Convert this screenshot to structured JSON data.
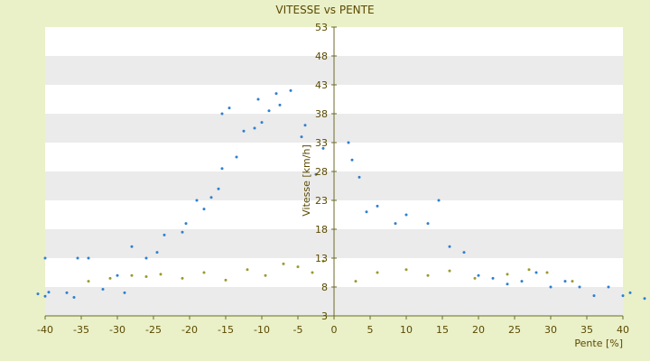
{
  "chart_data": {
    "type": "scatter",
    "title": "VITESSE vs PENTE",
    "xlabel": "Pente [%]",
    "ylabel": "Vitesse [km/h]",
    "xlim": [
      -40,
      40
    ],
    "ylim": [
      3,
      53
    ],
    "x_ticks": [
      -40,
      -35,
      -30,
      -25,
      -20,
      -15,
      -10,
      -5,
      0,
      5,
      10,
      15,
      20,
      25,
      30,
      35,
      40
    ],
    "y_ticks": [
      3,
      8,
      13,
      18,
      23,
      28,
      33,
      38,
      43,
      48,
      53
    ],
    "grid": "horizontal alternating bands",
    "legend": "none",
    "colors": {
      "background": "#eaf0c8",
      "band_light": "#ffffff",
      "band_dark": "#ebebeb",
      "axis": "#6b6b2a",
      "text": "#5a4a00",
      "series_main": "#2f7fd0",
      "series_secondary": "#9a9a2e"
    },
    "series": [
      {
        "color": "#2f7fd0",
        "points": [
          [
            -41.0,
            6.8
          ],
          [
            -40.0,
            6.4
          ],
          [
            -40.0,
            13.0
          ],
          [
            -39.5,
            7.1
          ],
          [
            -37.0,
            7.0
          ],
          [
            -36.0,
            6.2
          ],
          [
            -35.5,
            13.0
          ],
          [
            -34.0,
            13.0
          ],
          [
            -32.0,
            7.6
          ],
          [
            -30.0,
            10.0
          ],
          [
            -29.0,
            7.0
          ],
          [
            -28.0,
            15.0
          ],
          [
            -26.0,
            13.0
          ],
          [
            -24.5,
            14.0
          ],
          [
            -23.5,
            17.0
          ],
          [
            -21.0,
            17.5
          ],
          [
            -20.5,
            19.0
          ],
          [
            -19.0,
            23.0
          ],
          [
            -18.0,
            21.5
          ],
          [
            -17.0,
            23.5
          ],
          [
            -16.0,
            25.0
          ],
          [
            -15.5,
            28.5
          ],
          [
            -15.5,
            38.0
          ],
          [
            -14.5,
            39.0
          ],
          [
            -13.5,
            30.5
          ],
          [
            -12.5,
            35.0
          ],
          [
            -11.0,
            35.5
          ],
          [
            -10.5,
            40.5
          ],
          [
            -10.0,
            36.5
          ],
          [
            -9.0,
            38.5
          ],
          [
            -8.0,
            41.5
          ],
          [
            -7.5,
            39.5
          ],
          [
            -6.0,
            42.0
          ],
          [
            -4.5,
            34.0
          ],
          [
            -4.0,
            36.0
          ],
          [
            -2.5,
            27.5
          ],
          [
            -1.5,
            32.0
          ],
          [
            2.0,
            33.0
          ],
          [
            2.5,
            30.0
          ],
          [
            3.5,
            27.0
          ],
          [
            4.5,
            21.0
          ],
          [
            6.0,
            22.0
          ],
          [
            8.5,
            19.0
          ],
          [
            10.0,
            20.5
          ],
          [
            13.0,
            19.0
          ],
          [
            14.5,
            23.0
          ],
          [
            16.0,
            15.0
          ],
          [
            18.0,
            14.0
          ],
          [
            20.0,
            10.0
          ],
          [
            22.0,
            9.5
          ],
          [
            24.0,
            8.5
          ],
          [
            26.0,
            9.0
          ],
          [
            28.0,
            10.5
          ],
          [
            30.0,
            8.0
          ],
          [
            32.0,
            9.0
          ],
          [
            34.0,
            8.0
          ],
          [
            36.0,
            6.5
          ],
          [
            38.0,
            8.0
          ],
          [
            40.0,
            6.5
          ],
          [
            41.0,
            7.0
          ],
          [
            43.0,
            6.0
          ]
        ]
      },
      {
        "color": "#9a9a2e",
        "points": [
          [
            -34.0,
            9.0
          ],
          [
            -31.0,
            9.5
          ],
          [
            -28.0,
            10.0
          ],
          [
            -26.0,
            9.8
          ],
          [
            -24.0,
            10.2
          ],
          [
            -21.0,
            9.5
          ],
          [
            -18.0,
            10.5
          ],
          [
            -15.0,
            9.2
          ],
          [
            -12.0,
            11.0
          ],
          [
            -9.5,
            10.0
          ],
          [
            -7.0,
            12.0
          ],
          [
            -5.0,
            11.5
          ],
          [
            -3.0,
            10.5
          ],
          [
            -1.5,
            12.5
          ],
          [
            3.0,
            9.0
          ],
          [
            6.0,
            10.5
          ],
          [
            10.0,
            11.0
          ],
          [
            13.0,
            10.0
          ],
          [
            16.0,
            10.8
          ],
          [
            19.5,
            9.5
          ],
          [
            24.0,
            10.2
          ],
          [
            27.0,
            11.0
          ],
          [
            29.5,
            10.5
          ],
          [
            33.0,
            9.0
          ]
        ]
      }
    ]
  }
}
